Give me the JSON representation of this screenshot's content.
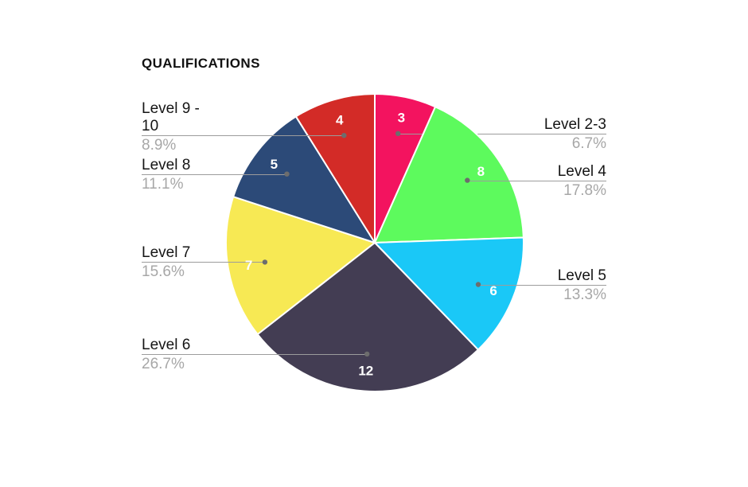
{
  "title": "QUALIFICATIONS",
  "chart_data": {
    "type": "pie",
    "title": "QUALIFICATIONS",
    "total": 45,
    "start_angle_deg": 0,
    "direction": "clockwise",
    "label_style": "outside-leader-lines",
    "legend": "none",
    "slices": [
      {
        "label": "Level 2-3",
        "value": 3,
        "percent": "6.7%",
        "color": "#F3135F"
      },
      {
        "label": "Level 4",
        "value": 8,
        "percent": "17.8%",
        "color": "#5DFA5D"
      },
      {
        "label": "Level 5",
        "value": 6,
        "percent": "13.3%",
        "color": "#1AC8F7"
      },
      {
        "label": "Level 6",
        "value": 12,
        "percent": "26.7%",
        "color": "#433D53"
      },
      {
        "label": "Level 7",
        "value": 7,
        "percent": "15.6%",
        "color": "#F7E954"
      },
      {
        "label": "Level 8",
        "value": 5,
        "percent": "11.1%",
        "color": "#2C4A78"
      },
      {
        "label": "Level 9 - 10",
        "value": 4,
        "percent": "8.9%",
        "color": "#D32B27"
      }
    ],
    "palette": {
      "background": "#FFFFFF",
      "title_text": "#111111",
      "label_text": "#151515",
      "percent_text": "#A7A7A7",
      "leader_line": "#9C9C9C",
      "leader_dot": "#6D6D6D",
      "value_text": "#FFFFFF",
      "slice_border": "#FFFFFF"
    }
  }
}
